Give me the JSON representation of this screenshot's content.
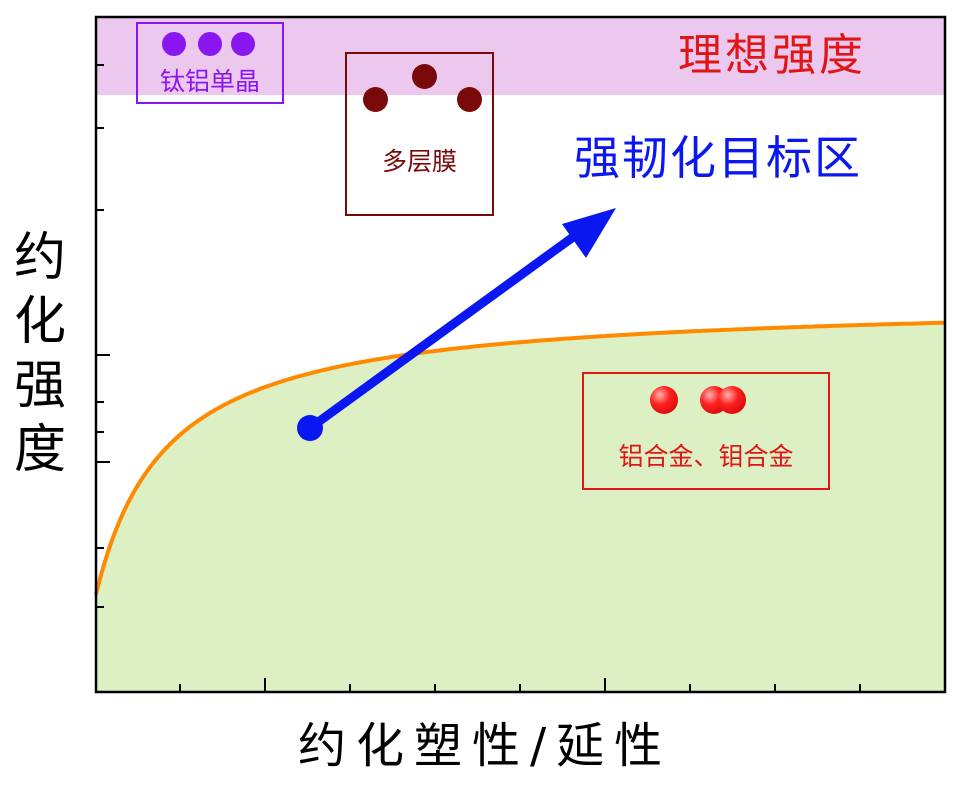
{
  "ideal_strength_label": "理想强度",
  "target_zone_label": "强韧化目标区",
  "y_axis_label_chars": [
    "约",
    "化",
    "强",
    "度"
  ],
  "x_axis_label": "约化塑性/延性",
  "materials": [
    {
      "label": "钛铝单晶",
      "color": "#8a17f0",
      "dot_count": 3
    },
    {
      "label": "多层膜",
      "color": "#7a0a0a",
      "dot_count": 3
    },
    {
      "label": "铝合金、钼合金",
      "color": "#e01515",
      "dot_count": 3
    }
  ],
  "colors": {
    "ideal_band": "#ecc8ee",
    "feasible_region": "#dcf0c4",
    "tradeoff_curve": "#ff8a00",
    "arrow": "#0a17f0",
    "ideal_text": "#e01515",
    "target_text": "#0a17f0",
    "axis": "#000000"
  }
}
